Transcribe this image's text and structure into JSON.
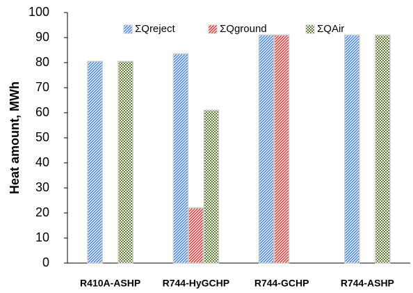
{
  "chart_data": {
    "type": "bar",
    "y_label": "Heat amount, MWh",
    "categories": [
      "R410A-ASHP",
      "R744-HyGCHP",
      "R744-GCHP",
      "R744-ASHP"
    ],
    "series": [
      {
        "name": "ΣQreject",
        "color": "#3a7dd8",
        "pattern": "diagonal",
        "values": [
          80.5,
          83.5,
          91,
          91
        ]
      },
      {
        "name": "ΣQground",
        "color": "#d42a2a",
        "pattern": "diagonal",
        "values": [
          0,
          22,
          91,
          0
        ]
      },
      {
        "name": "ΣQAir",
        "color": "#5a7a2e",
        "pattern": "checker",
        "values": [
          80.5,
          61,
          0,
          91
        ]
      }
    ],
    "ylim": [
      0,
      100
    ],
    "yticks": [
      0,
      10,
      20,
      30,
      40,
      50,
      60,
      70,
      80,
      90,
      100
    ],
    "grid": false,
    "legend": "top"
  }
}
